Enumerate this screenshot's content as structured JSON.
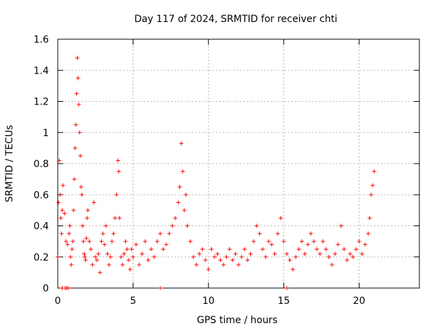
{
  "chart_data": {
    "type": "scatter",
    "title": "Day 117 of 2024, SRMTID for receiver chti",
    "xlabel": "GPS time / hours",
    "ylabel": "SRMTID / TECUs",
    "xlim": [
      0,
      24
    ],
    "ylim": [
      0,
      1.6
    ],
    "xticks": [
      0,
      5,
      10,
      15,
      20
    ],
    "xtick_labels": [
      "0",
      "5",
      "10",
      "15",
      "20"
    ],
    "yticks": [
      0,
      0.2,
      0.4,
      0.6,
      0.8,
      1,
      1.2,
      1.4,
      1.6
    ],
    "ytick_labels": [
      "0",
      "0.2",
      "0.4",
      "0.6",
      "0.8",
      "1",
      "1.2",
      "1.4",
      "1.6"
    ],
    "grid": true,
    "marker": "+",
    "series": [
      {
        "name": "SRMTID",
        "color": "#ff0000",
        "x": [
          0.0,
          0.05,
          0.1,
          0.15,
          0.2,
          0.25,
          0.3,
          0.35,
          0.45,
          0.55,
          0.65,
          0.75,
          0.8,
          0.85,
          0.9,
          0.95,
          1.0,
          1.05,
          1.1,
          1.15,
          1.2,
          1.25,
          1.3,
          1.35,
          1.4,
          1.45,
          1.5,
          1.55,
          1.6,
          1.65,
          1.7,
          1.75,
          1.8,
          1.85,
          1.9,
          1.95,
          2.0,
          2.1,
          2.2,
          2.3,
          2.4,
          2.5,
          2.6,
          2.7,
          2.8,
          2.9,
          3.0,
          3.1,
          3.2,
          3.3,
          3.4,
          3.5,
          3.6,
          3.7,
          3.8,
          3.9,
          4.0,
          4.05,
          4.1,
          4.2,
          4.3,
          4.4,
          4.5,
          4.6,
          4.7,
          4.8,
          4.9,
          5.0,
          5.2,
          5.4,
          5.6,
          5.8,
          6.0,
          6.2,
          6.4,
          6.6,
          6.8,
          7.0,
          7.2,
          7.4,
          7.6,
          7.8,
          8.0,
          8.1,
          8.2,
          8.3,
          8.4,
          8.5,
          8.6,
          8.8,
          9.0,
          9.2,
          9.4,
          9.6,
          9.8,
          10.0,
          10.2,
          10.4,
          10.6,
          10.8,
          11.0,
          11.2,
          11.4,
          11.6,
          11.8,
          12.0,
          12.2,
          12.4,
          12.6,
          12.8,
          13.0,
          13.2,
          13.4,
          13.6,
          13.8,
          14.0,
          14.2,
          14.4,
          14.6,
          14.8,
          15.0,
          15.2,
          15.4,
          15.6,
          15.8,
          16.0,
          16.2,
          16.4,
          16.6,
          16.8,
          17.0,
          17.2,
          17.4,
          17.6,
          17.8,
          18.0,
          18.2,
          18.4,
          18.6,
          18.8,
          19.0,
          19.2,
          19.4,
          19.6,
          19.8,
          20.0,
          20.2,
          20.4,
          20.6,
          20.7,
          20.8,
          20.9,
          21.0,
          0.3,
          0.5,
          0.6,
          0.7,
          6.8,
          15.2
        ],
        "y": [
          0.2,
          0.55,
          0.82,
          0.6,
          0.45,
          0.35,
          0.5,
          0.66,
          0.48,
          0.3,
          0.28,
          0.35,
          0.4,
          0.2,
          0.15,
          0.25,
          0.3,
          0.5,
          0.7,
          0.9,
          1.05,
          1.25,
          1.48,
          1.35,
          1.18,
          1.0,
          0.85,
          0.65,
          0.6,
          0.4,
          0.3,
          0.22,
          0.2,
          0.18,
          0.32,
          0.45,
          0.5,
          0.3,
          0.25,
          0.15,
          0.55,
          0.2,
          0.18,
          0.22,
          0.1,
          0.3,
          0.35,
          0.28,
          0.4,
          0.22,
          0.15,
          0.2,
          0.3,
          0.35,
          0.45,
          0.6,
          0.82,
          0.75,
          0.45,
          0.2,
          0.15,
          0.22,
          0.3,
          0.25,
          0.18,
          0.12,
          0.25,
          0.2,
          0.28,
          0.15,
          0.22,
          0.3,
          0.18,
          0.25,
          0.2,
          0.3,
          0.35,
          0.25,
          0.28,
          0.35,
          0.4,
          0.45,
          0.55,
          0.65,
          0.93,
          0.75,
          0.5,
          0.6,
          0.4,
          0.3,
          0.2,
          0.15,
          0.22,
          0.25,
          0.18,
          0.12,
          0.25,
          0.2,
          0.22,
          0.18,
          0.15,
          0.2,
          0.25,
          0.18,
          0.22,
          0.15,
          0.2,
          0.25,
          0.18,
          0.22,
          0.3,
          0.4,
          0.35,
          0.25,
          0.2,
          0.3,
          0.28,
          0.22,
          0.35,
          0.45,
          0.3,
          0.22,
          0.18,
          0.12,
          0.2,
          0.25,
          0.3,
          0.22,
          0.28,
          0.35,
          0.3,
          0.25,
          0.22,
          0.3,
          0.25,
          0.2,
          0.15,
          0.22,
          0.28,
          0.4,
          0.25,
          0.18,
          0.22,
          0.2,
          0.25,
          0.3,
          0.22,
          0.28,
          0.35,
          0.45,
          0.6,
          0.66,
          0.75,
          0.0,
          0.0,
          0.0,
          0.0,
          0.0,
          0.0
        ]
      }
    ]
  }
}
